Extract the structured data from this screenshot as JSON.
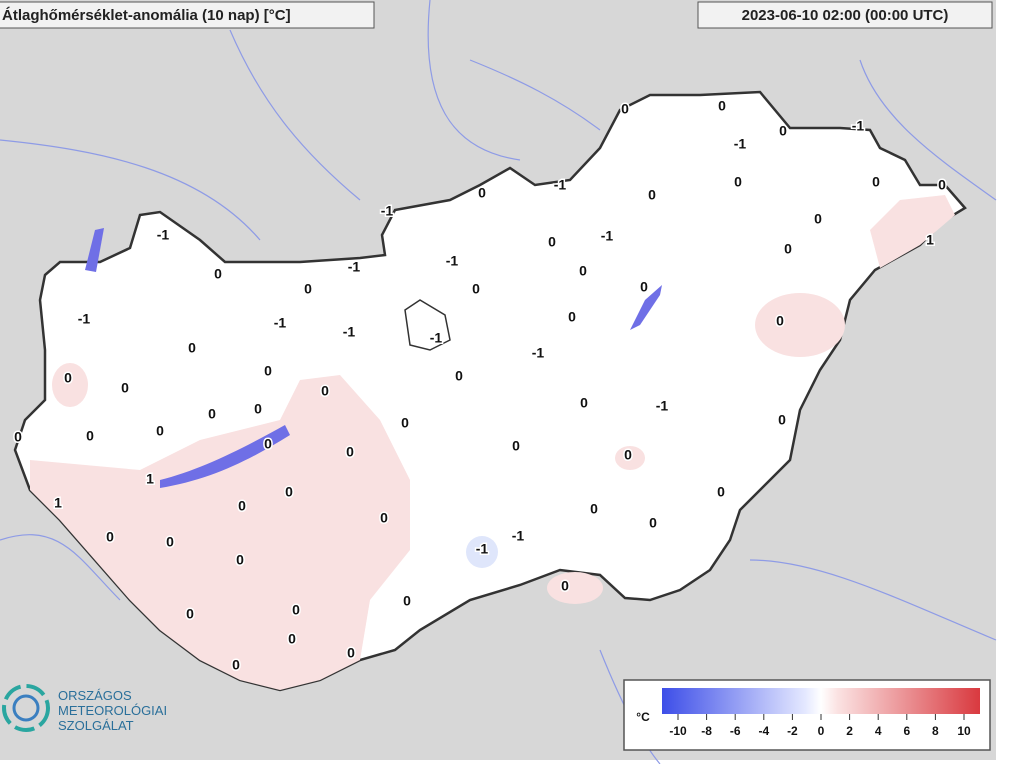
{
  "header": {
    "title": "Átlaghőmérséklet-anomália (10 nap) [°C]",
    "timestamp": "2023-06-10 02:00 (00:00 UTC)"
  },
  "stations": [
    0,
    0,
    0,
    -1,
    -1,
    0,
    0,
    0,
    -1,
    0,
    0,
    -1,
    0,
    -1,
    -1,
    0,
    0,
    1,
    -1,
    -1,
    0,
    0,
    0,
    0,
    0,
    -1,
    -1,
    -1,
    0,
    0,
    -1,
    0,
    -1,
    0,
    0,
    0,
    0,
    0,
    0,
    -1,
    0,
    0,
    0,
    0,
    0,
    0,
    0,
    0,
    0,
    0,
    0,
    1,
    0,
    0,
    1,
    0,
    0,
    0,
    0,
    0,
    0,
    -1,
    -1,
    0,
    0,
    0,
    0,
    0,
    0,
    0,
    0
  ],
  "logo": {
    "lines": [
      "ORSZÁGOS",
      "METEOROLÓGIAI",
      "SZOLGÁLAT"
    ]
  },
  "legend": {
    "unit": "°C",
    "ticks": [
      -10,
      -8,
      -6,
      -4,
      -2,
      0,
      2,
      4,
      6,
      8,
      10
    ]
  }
}
